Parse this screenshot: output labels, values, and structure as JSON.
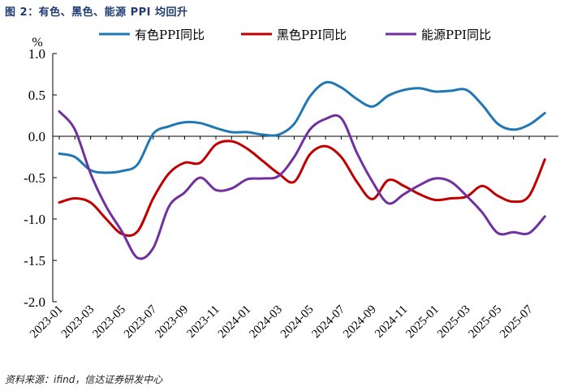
{
  "figure": {
    "title": "图 2：有色、黑色、能源 PPI 均回升",
    "source": "资料来源：ifind，信达证券研发中心"
  },
  "chart_data": {
    "type": "line",
    "title": "图 2：有色、黑色、能源 PPI 均回升",
    "ylabel": "%",
    "xlabel": "",
    "ylim": [
      -2.0,
      1.0
    ],
    "yticks": [
      1.0,
      0.5,
      0.0,
      -0.5,
      -1.0,
      -1.5,
      -2.0
    ],
    "ytick_labels": [
      "1.0",
      "0.5",
      "0.0",
      "-0.5",
      "-1.0",
      "-1.5",
      "-2.0"
    ],
    "grid": false,
    "legend_position": "top",
    "x": [
      "2023-01",
      "2023-02",
      "2023-03",
      "2023-04",
      "2023-05",
      "2023-06",
      "2023-07",
      "2023-08",
      "2023-09",
      "2023-10",
      "2023-11",
      "2023-12",
      "2024-01",
      "2024-02",
      "2024-03",
      "2024-04",
      "2024-05",
      "2024-06",
      "2024-07",
      "2024-08",
      "2024-09",
      "2024-10",
      "2024-11",
      "2024-12",
      "2025-01",
      "2025-02",
      "2025-03",
      "2025-04",
      "2025-05",
      "2025-06",
      "2025-07",
      "2025-08"
    ],
    "xtick_labels": [
      "2023-01",
      "2023-03",
      "2023-05",
      "2023-07",
      "2023-09",
      "2023-11",
      "2024-01",
      "2024-03",
      "2024-05",
      "2024-07",
      "2024-09",
      "2024-11",
      "2025-01",
      "2025-03",
      "2025-05",
      "2025-07"
    ],
    "series": [
      {
        "name": "有色PPI同比",
        "color": "#1f77b4",
        "values": [
          -0.21,
          -0.25,
          -0.41,
          -0.44,
          -0.42,
          -0.34,
          0.03,
          0.12,
          0.17,
          0.16,
          0.1,
          0.05,
          0.05,
          0.02,
          0.02,
          0.15,
          0.48,
          0.65,
          0.59,
          0.45,
          0.36,
          0.49,
          0.56,
          0.58,
          0.54,
          0.55,
          0.56,
          0.38,
          0.15,
          0.08,
          0.14,
          0.28
        ]
      },
      {
        "name": "黑色PPI同比",
        "color": "#c00000",
        "values": [
          -0.8,
          -0.75,
          -0.8,
          -1.0,
          -1.18,
          -1.15,
          -0.75,
          -0.45,
          -0.32,
          -0.32,
          -0.1,
          -0.06,
          -0.15,
          -0.3,
          -0.45,
          -0.55,
          -0.22,
          -0.12,
          -0.25,
          -0.55,
          -0.76,
          -0.53,
          -0.6,
          -0.7,
          -0.77,
          -0.75,
          -0.73,
          -0.6,
          -0.72,
          -0.79,
          -0.72,
          -0.28
        ]
      },
      {
        "name": "能源PPI同比",
        "color": "#7030a0",
        "values": [
          0.3,
          0.08,
          -0.45,
          -0.85,
          -1.15,
          -1.47,
          -1.35,
          -0.85,
          -0.68,
          -0.5,
          -0.65,
          -0.63,
          -0.52,
          -0.51,
          -0.48,
          -0.25,
          0.08,
          0.21,
          0.22,
          -0.2,
          -0.55,
          -0.81,
          -0.7,
          -0.59,
          -0.51,
          -0.55,
          -0.72,
          -0.92,
          -1.17,
          -1.16,
          -1.17,
          -0.97
        ]
      }
    ]
  }
}
